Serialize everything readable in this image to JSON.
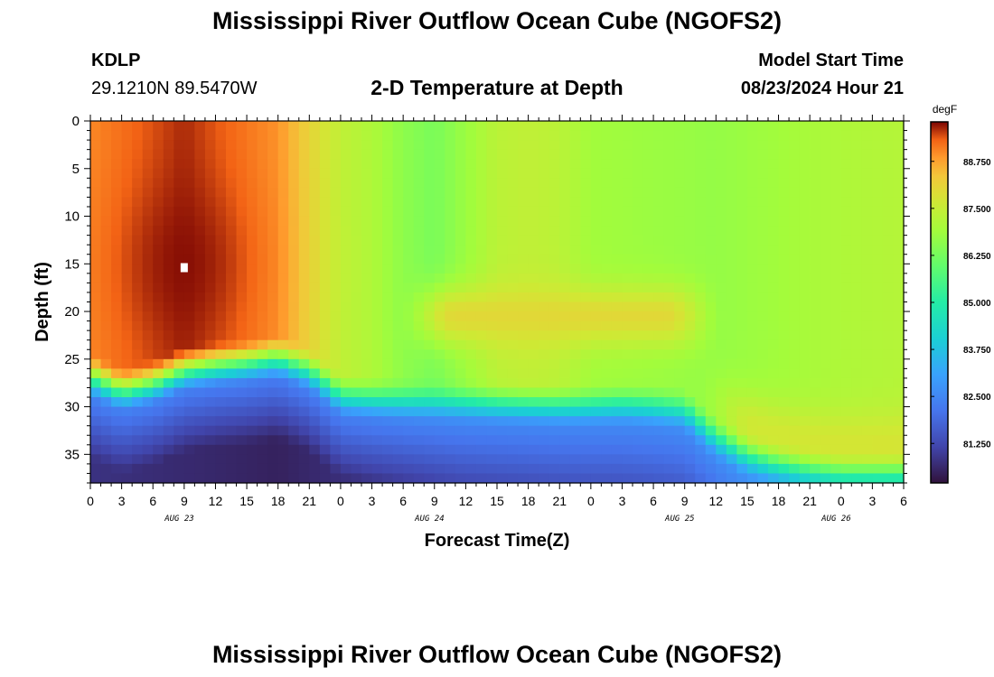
{
  "header": {
    "title": "Mississippi River Outflow Ocean Cube (NGOFS2)",
    "station_id": "KDLP",
    "station_coords": "29.1210N  89.5470W",
    "model_start_label": "Model Start Time",
    "model_start_value": "08/23/2024 Hour 21"
  },
  "footer": {
    "title": "Mississippi River Outflow Ocean Cube (NGOFS2)"
  },
  "chart_data": {
    "type": "heatmap",
    "title": "2-D Temperature at Depth",
    "xlabel": "Forecast Time(Z)",
    "ylabel": "Depth (ft)",
    "units": "degF",
    "x_range_hours": [
      0,
      78
    ],
    "x_ticks": [
      {
        "hour": 0,
        "label": "0"
      },
      {
        "hour": 3,
        "label": "3"
      },
      {
        "hour": 6,
        "label": "6"
      },
      {
        "hour": 9,
        "label": "9"
      },
      {
        "hour": 12,
        "label": "12"
      },
      {
        "hour": 15,
        "label": "15"
      },
      {
        "hour": 18,
        "label": "18"
      },
      {
        "hour": 21,
        "label": "21"
      },
      {
        "hour": 24,
        "label": "0"
      },
      {
        "hour": 27,
        "label": "3"
      },
      {
        "hour": 30,
        "label": "6"
      },
      {
        "hour": 33,
        "label": "9"
      },
      {
        "hour": 36,
        "label": "12"
      },
      {
        "hour": 39,
        "label": "15"
      },
      {
        "hour": 42,
        "label": "18"
      },
      {
        "hour": 45,
        "label": "21"
      },
      {
        "hour": 48,
        "label": "0"
      },
      {
        "hour": 51,
        "label": "3"
      },
      {
        "hour": 54,
        "label": "6"
      },
      {
        "hour": 57,
        "label": "9"
      },
      {
        "hour": 60,
        "label": "12"
      },
      {
        "hour": 63,
        "label": "15"
      },
      {
        "hour": 66,
        "label": "18"
      },
      {
        "hour": 69,
        "label": "21"
      },
      {
        "hour": 72,
        "label": "0"
      },
      {
        "hour": 75,
        "label": "3"
      },
      {
        "hour": 78,
        "label": "6"
      }
    ],
    "day_labels": [
      {
        "hour": 12,
        "label": "AUG 23"
      },
      {
        "hour": 36,
        "label": "AUG 24"
      },
      {
        "hour": 60,
        "label": "AUG 25"
      },
      {
        "hour": 75,
        "label": "AUG 26"
      }
    ],
    "y_range_ft": [
      0,
      38
    ],
    "y_ticks": [
      0,
      5,
      10,
      15,
      20,
      25,
      30,
      35
    ],
    "color_range_degF": [
      80.2,
      89.8
    ],
    "colorbar_ticks": [
      "81.250",
      "82.500",
      "83.750",
      "85.000",
      "86.250",
      "87.500",
      "88.750"
    ],
    "thermocline_depth_ft": [
      [
        0,
        26.5
      ],
      [
        3,
        28.0
      ],
      [
        6,
        27.2
      ],
      [
        9,
        25.8
      ],
      [
        12,
        25.3
      ],
      [
        15,
        25.0
      ],
      [
        18,
        24.5
      ],
      [
        21,
        25.8
      ],
      [
        24,
        28.5
      ],
      [
        27,
        28.8
      ],
      [
        30,
        29.0
      ],
      [
        33,
        29.1
      ],
      [
        36,
        29.2
      ],
      [
        39,
        29.3
      ],
      [
        42,
        29.4
      ],
      [
        45,
        29.5
      ],
      [
        48,
        29.5
      ],
      [
        51,
        29.4
      ],
      [
        54,
        29.6
      ],
      [
        57,
        30.0
      ],
      [
        60,
        33.0
      ],
      [
        63,
        35.0
      ],
      [
        66,
        36.0
      ],
      [
        69,
        36.6
      ],
      [
        72,
        37.0
      ],
      [
        75,
        37.0
      ],
      [
        78,
        37.0
      ]
    ],
    "bottom_temperature_degF": [
      [
        0,
        80.8
      ],
      [
        18,
        80.5
      ],
      [
        36,
        81.2
      ],
      [
        60,
        81.5
      ],
      [
        78,
        84.5
      ]
    ],
    "surface_temperature_degF": [
      [
        0,
        89.0
      ],
      [
        9,
        89.6
      ],
      [
        18,
        88.9
      ],
      [
        21,
        88.1
      ],
      [
        24,
        87.4
      ],
      [
        27,
        87.1
      ],
      [
        30,
        86.6
      ],
      [
        33,
        86.3
      ],
      [
        36,
        86.8
      ],
      [
        39,
        87.3
      ],
      [
        42,
        87.4
      ],
      [
        45,
        87.3
      ],
      [
        48,
        86.9
      ],
      [
        54,
        86.8
      ],
      [
        60,
        86.7
      ],
      [
        66,
        86.9
      ],
      [
        72,
        87.1
      ],
      [
        78,
        87.2
      ]
    ],
    "warm_core": {
      "hour": 9,
      "depth_ft": 15,
      "value_degF": 89.8
    },
    "subsurface_warm_layer": {
      "hour_start": 33,
      "hour_end": 57,
      "depth_ft": 20.5,
      "value_degF": 88.0
    }
  }
}
